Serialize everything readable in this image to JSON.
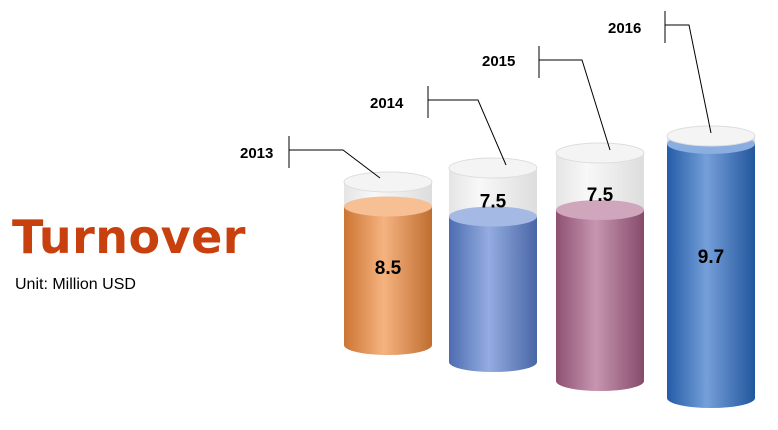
{
  "title": "Turnover",
  "unit_label": "Unit: Million USD",
  "chart_data": {
    "type": "bar",
    "style": "3d-cylinder",
    "categories": [
      "2013",
      "2014",
      "2015",
      "2016"
    ],
    "values": [
      8.5,
      7.5,
      7.5,
      9.7
    ],
    "data_labels": [
      "8.5",
      "7.5",
      "7.5",
      "9.7"
    ],
    "title": "Turnover",
    "unit": "Unit: Million USD",
    "legend": "none",
    "grid": false,
    "colors": {
      "2013": "#f08a3c",
      "2014": "#5b7fd0",
      "2015": "#a85e86",
      "2016": "#2a6cc4"
    }
  }
}
